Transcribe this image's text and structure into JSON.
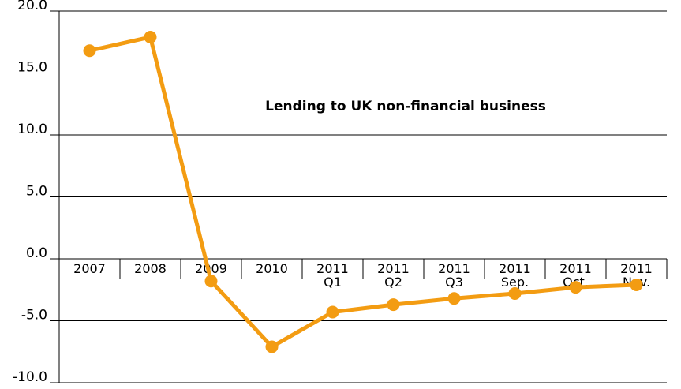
{
  "chart_data": {
    "type": "line",
    "title": "Lending to UK non-financial business",
    "xlabel": "",
    "ylabel": "",
    "ylim": [
      -10,
      20
    ],
    "yticks": [
      "20.0",
      "15.0",
      "10.0",
      "5.0",
      "0.0",
      "-5.0",
      "-10.0"
    ],
    "ytick_values": [
      20,
      15,
      10,
      5,
      0,
      -5,
      -10
    ],
    "categories": [
      [
        "2007"
      ],
      [
        "2008"
      ],
      [
        "2009"
      ],
      [
        "2010"
      ],
      [
        "2011",
        "Q1"
      ],
      [
        "2011",
        "Q2"
      ],
      [
        "2011",
        "Q3"
      ],
      [
        "2011",
        "Sep."
      ],
      [
        "2011",
        "Oct."
      ],
      [
        "2011",
        "Nov."
      ]
    ],
    "series": [
      {
        "values": [
          16.8,
          17.9,
          -1.8,
          -7.1,
          -4.3,
          -3.7,
          -3.2,
          -2.8,
          -2.3,
          -2.1
        ]
      }
    ],
    "grid": "horizontal",
    "color": "#F39C12"
  }
}
